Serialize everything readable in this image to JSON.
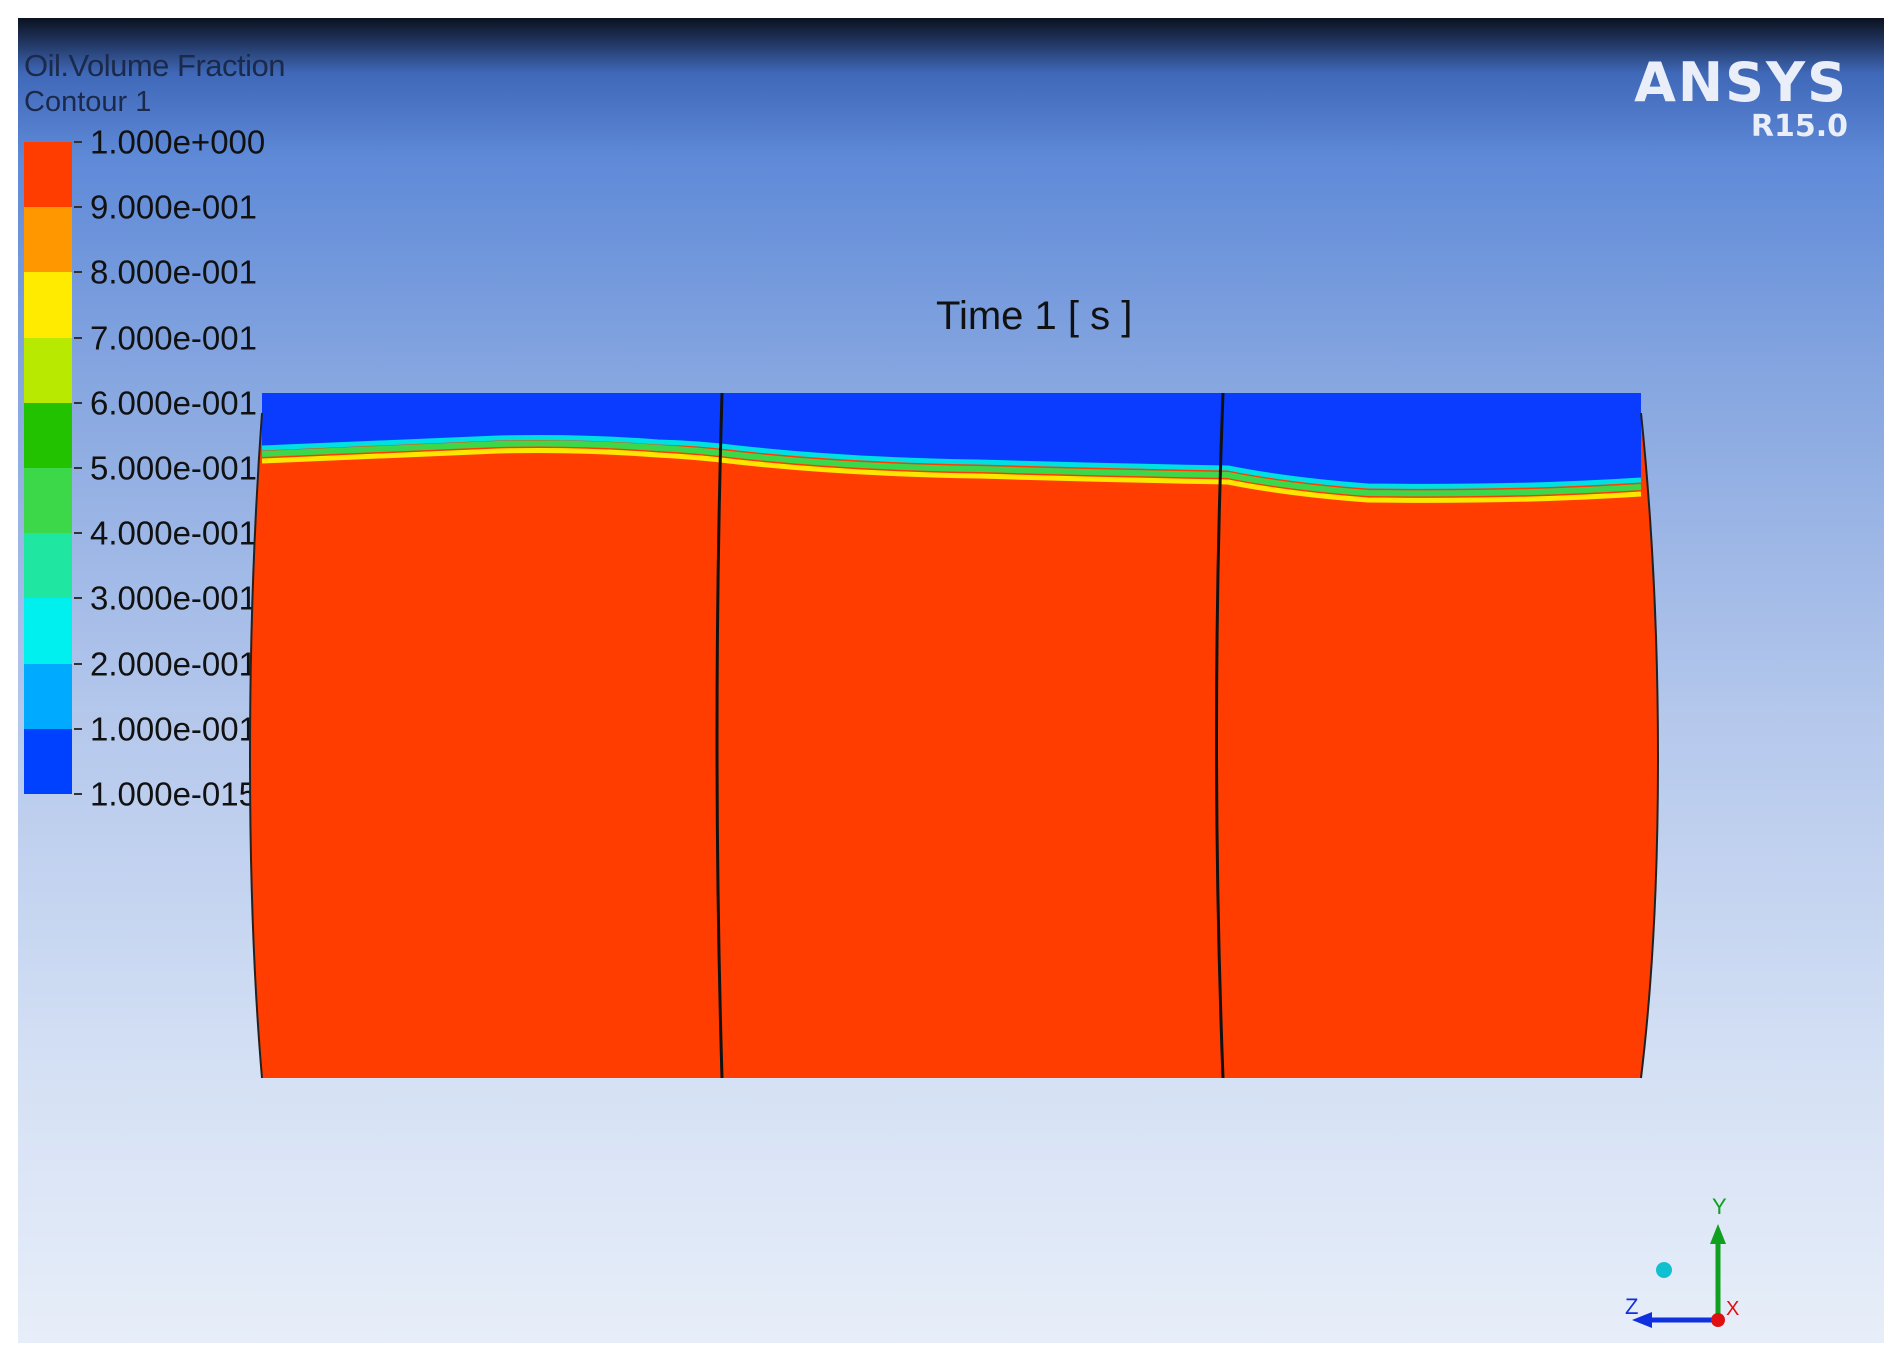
{
  "legend": {
    "title": "Oil.Volume Fraction",
    "subtitle": "Contour 1",
    "labels": [
      "1.000e+000",
      "9.000e-001",
      "8.000e-001",
      "7.000e-001",
      "6.000e-001",
      "5.000e-001",
      "4.000e-001",
      "3.000e-001",
      "2.000e-001",
      "1.000e-001",
      "1.000e-015"
    ],
    "band_colors": [
      "#ff3d00",
      "#ff9800",
      "#ffeb00",
      "#b7ea00",
      "#22c200",
      "#3cd84a",
      "#1fe6a0",
      "#00f0f0",
      "#00aaff",
      "#0040ff"
    ]
  },
  "brand": {
    "name": "ANSYS",
    "version": "R15.0"
  },
  "time_label": "Time 1 [ s ]",
  "colors": {
    "oil": "#ff3d00",
    "water": "#0a3cff",
    "interface_yellow": "#ffe600",
    "interface_green": "#3cd84a",
    "interface_cyan": "#00e0e0",
    "axis_x": "#e01010",
    "axis_y": "#10a020",
    "axis_z": "#1030e0"
  },
  "axes": {
    "y": "Y",
    "z": "Z",
    "x": "X"
  }
}
